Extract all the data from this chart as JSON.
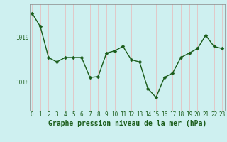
{
  "x": [
    0,
    1,
    2,
    3,
    4,
    5,
    6,
    7,
    8,
    9,
    10,
    11,
    12,
    13,
    14,
    15,
    16,
    17,
    18,
    19,
    20,
    21,
    22,
    23
  ],
  "y": [
    1019.55,
    1019.25,
    1018.55,
    1018.45,
    1018.55,
    1018.55,
    1018.55,
    1018.1,
    1018.12,
    1018.65,
    1018.7,
    1018.8,
    1018.5,
    1018.45,
    1017.85,
    1017.65,
    1018.1,
    1018.2,
    1018.55,
    1018.65,
    1018.75,
    1019.05,
    1018.8,
    1018.75
  ],
  "line_color": "#1a5c1a",
  "marker_color": "#1a5c1a",
  "bg_color": "#cef0f0",
  "grid_color_x": "#e8b8b8",
  "grid_color_y": "#c8e8e8",
  "title": "Graphe pression niveau de la mer (hPa)",
  "yticks": [
    1018,
    1019
  ],
  "ylim": [
    1017.35,
    1019.75
  ],
  "xlim": [
    -0.3,
    23.3
  ],
  "title_fontsize": 7.0,
  "tick_fontsize": 5.5,
  "line_width": 1.0,
  "marker_size": 2.5
}
